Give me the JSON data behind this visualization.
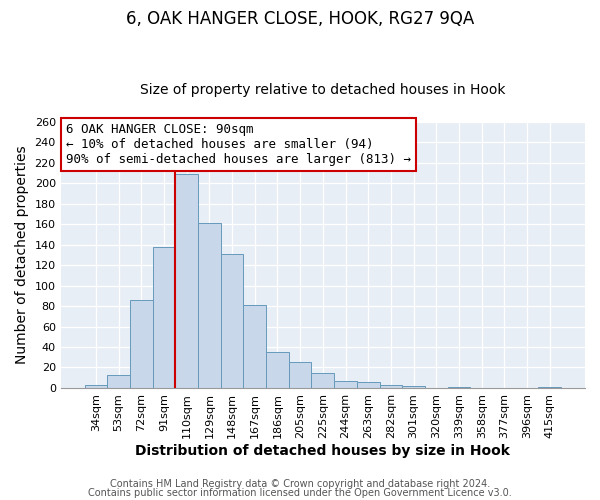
{
  "title": "6, OAK HANGER CLOSE, HOOK, RG27 9QA",
  "subtitle": "Size of property relative to detached houses in Hook",
  "xlabel": "Distribution of detached houses by size in Hook",
  "ylabel": "Number of detached properties",
  "bar_labels": [
    "34sqm",
    "53sqm",
    "72sqm",
    "91sqm",
    "110sqm",
    "129sqm",
    "148sqm",
    "167sqm",
    "186sqm",
    "205sqm",
    "225sqm",
    "244sqm",
    "263sqm",
    "282sqm",
    "301sqm",
    "320sqm",
    "339sqm",
    "358sqm",
    "377sqm",
    "396sqm",
    "415sqm"
  ],
  "bar_values": [
    3,
    13,
    86,
    138,
    209,
    161,
    131,
    81,
    35,
    25,
    15,
    7,
    6,
    3,
    2,
    0,
    1,
    0,
    0,
    0,
    1
  ],
  "bar_color": "#c8d8ea",
  "bar_edge_color": "#6699bb",
  "vline_x": 3,
  "vline_color": "#cc0000",
  "annotation_line1": "6 OAK HANGER CLOSE: 90sqm",
  "annotation_line2": "← 10% of detached houses are smaller (94)",
  "annotation_line3": "90% of semi-detached houses are larger (813) →",
  "annotation_box_color": "#ffffff",
  "annotation_box_edge": "#cc0000",
  "ylim": [
    0,
    260
  ],
  "yticks": [
    0,
    20,
    40,
    60,
    80,
    100,
    120,
    140,
    160,
    180,
    200,
    220,
    240,
    260
  ],
  "footer1": "Contains HM Land Registry data © Crown copyright and database right 2024.",
  "footer2": "Contains public sector information licensed under the Open Government Licence v3.0.",
  "bg_color": "#ffffff",
  "plot_bg_color": "#e8eef5",
  "title_fontsize": 12,
  "subtitle_fontsize": 10,
  "axis_label_fontsize": 10,
  "tick_fontsize": 8,
  "annotation_fontsize": 9,
  "footer_fontsize": 7
}
